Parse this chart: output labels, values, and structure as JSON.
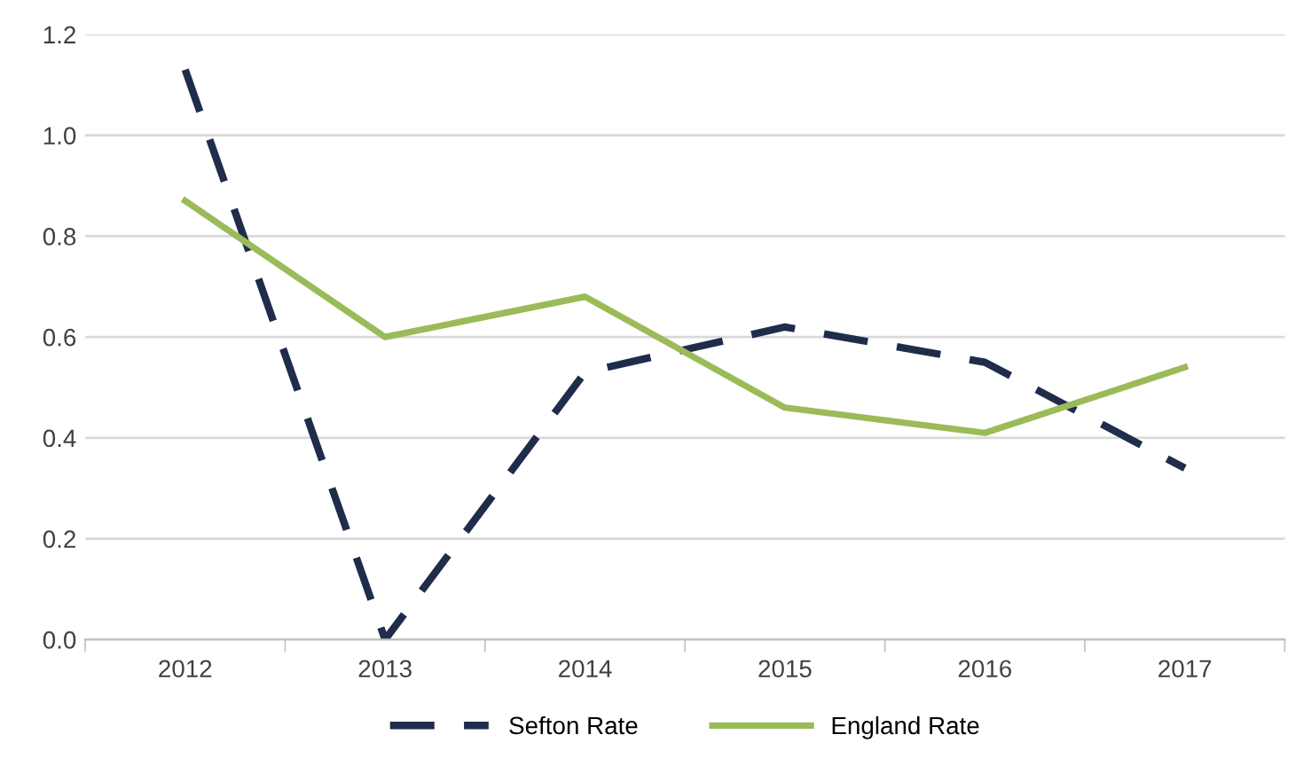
{
  "chart_data": {
    "type": "line",
    "categories": [
      "2012",
      "2013",
      "2014",
      "2015",
      "2016",
      "2017"
    ],
    "series": [
      {
        "name": "Sefton Rate",
        "color": "#1f2d4b",
        "line_style": "dashed",
        "values": [
          1.13,
          0.0,
          0.53,
          0.62,
          0.55,
          0.34
        ]
      },
      {
        "name": "England Rate",
        "color": "#9bbb59",
        "line_style": "solid",
        "values": [
          0.87,
          0.6,
          0.68,
          0.46,
          0.41,
          0.54
        ]
      }
    ],
    "ylim": [
      0,
      1.2
    ],
    "yticks": [
      {
        "value": 0,
        "label": "0.0"
      },
      {
        "value": 0.2,
        "label": "0.2"
      },
      {
        "value": 0.4,
        "label": "0.4"
      },
      {
        "value": 0.6,
        "label": "0.6"
      },
      {
        "value": 0.8,
        "label": "0.8"
      },
      {
        "value": 1.0,
        "label": "1.0"
      },
      {
        "value": 1.2,
        "label": "1.2"
      }
    ],
    "grid": "y",
    "legend": "bottom",
    "marker": "none"
  }
}
